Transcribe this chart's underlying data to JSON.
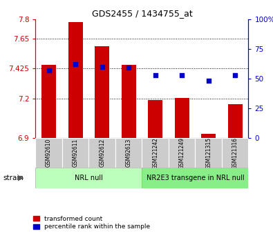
{
  "title": "GDS2455 / 1434755_at",
  "samples": [
    "GSM92610",
    "GSM92611",
    "GSM92612",
    "GSM92613",
    "GSM121242",
    "GSM121249",
    "GSM121315",
    "GSM121316"
  ],
  "transformed_counts": [
    7.455,
    7.775,
    7.595,
    7.455,
    7.185,
    7.205,
    6.93,
    7.155
  ],
  "percentile_ranks": [
    57,
    62,
    60,
    59,
    53,
    53,
    48,
    53
  ],
  "ylim_left": [
    6.9,
    7.8
  ],
  "ylim_right": [
    0,
    100
  ],
  "yticks_left": [
    6.9,
    7.2,
    7.425,
    7.65,
    7.8
  ],
  "ytick_labels_left": [
    "6.9",
    "7.2",
    "7.425",
    "7.65",
    "7.8"
  ],
  "yticks_right": [
    0,
    25,
    50,
    75,
    100
  ],
  "ytick_labels_right": [
    "0",
    "25",
    "50",
    "75",
    "100%"
  ],
  "bar_color": "#cc0000",
  "dot_color": "#0000cc",
  "bar_bottom": 6.9,
  "groups": [
    {
      "label": "NRL null",
      "start": 0,
      "end": 3,
      "color": "#bbffbb"
    },
    {
      "label": "NR2E3 transgene in NRL null",
      "start": 4,
      "end": 7,
      "color": "#88ee88"
    }
  ],
  "left_axis_color": "#cc0000",
  "right_axis_color": "#0000cc",
  "dotted_grid_lines": [
    7.2,
    7.425,
    7.65
  ],
  "background_color": "#ffffff",
  "bar_width": 0.55,
  "sample_box_color": "#cccccc",
  "legend_items": [
    "transformed count",
    "percentile rank within the sample"
  ]
}
